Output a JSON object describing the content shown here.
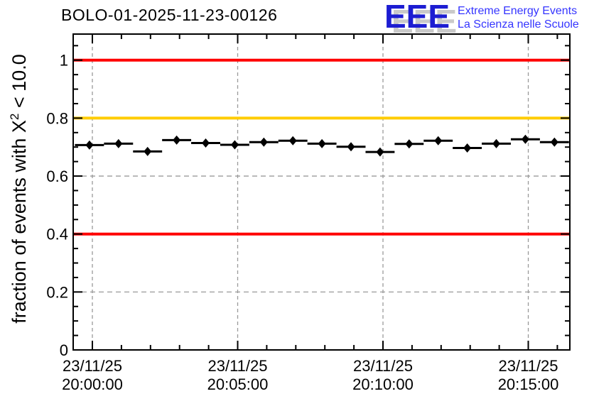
{
  "page": {
    "title": "BOLO-01-2025-11-23-00126"
  },
  "logo": {
    "acronym": "EEE",
    "line1": "Extreme Energy Events",
    "line2": "La Scienza nelle Scuole",
    "blue": "#1d1dd2",
    "text_blue": "#3535ff",
    "shadow_gray": "#c9c9c9"
  },
  "chart_data": {
    "type": "scatter",
    "title": "BOLO-01-2025-11-23-00126",
    "ylabel": "fraction of events with X^2 < 10.0",
    "ylabel_prefix": "fraction of events with X",
    "ylabel_sup": "2",
    "ylabel_suffix": " < 10.0",
    "xlabel": "",
    "ylim": [
      0,
      1.09
    ],
    "xlim_minutes_from_2000": [
      -0.66,
      16.43
    ],
    "grid": true,
    "grid_color": "#9a9a9a",
    "frame_color": "#000000",
    "y_ticks": [
      {
        "value": 0.0,
        "label": "0"
      },
      {
        "value": 0.2,
        "label": "0.2"
      },
      {
        "value": 0.4,
        "label": "0.4"
      },
      {
        "value": 0.6,
        "label": "0.6"
      },
      {
        "value": 0.8,
        "label": "0.8"
      },
      {
        "value": 1.0,
        "label": "1"
      }
    ],
    "y_minor_step": 0.05,
    "x_ticks": [
      {
        "minute": 0,
        "date": "23/11/25",
        "time": "20:00:00"
      },
      {
        "minute": 5,
        "date": "23/11/25",
        "time": "20:05:00"
      },
      {
        "minute": 10,
        "date": "23/11/25",
        "time": "20:10:00"
      },
      {
        "minute": 15,
        "date": "23/11/25",
        "time": "20:15:00"
      }
    ],
    "x_minor_step_minutes": 1,
    "reference_lines": [
      {
        "value": 1.0,
        "color": "#ff0000"
      },
      {
        "value": 0.8,
        "color": "#ffcc00"
      },
      {
        "value": 0.4,
        "color": "#ff0000"
      }
    ],
    "series": [
      {
        "name": "fraction of events with chi2 < 10 per minute",
        "marker": "diamond",
        "color": "#000000",
        "bin_halfwidth_seconds": 30,
        "points": [
          {
            "time": "19:59:54",
            "value": 0.707
          },
          {
            "time": "20:00:54",
            "value": 0.712
          },
          {
            "time": "20:01:54",
            "value": 0.685
          },
          {
            "time": "20:02:54",
            "value": 0.724
          },
          {
            "time": "20:03:54",
            "value": 0.714
          },
          {
            "time": "20:04:54",
            "value": 0.708
          },
          {
            "time": "20:05:54",
            "value": 0.717
          },
          {
            "time": "20:06:54",
            "value": 0.722
          },
          {
            "time": "20:07:54",
            "value": 0.712
          },
          {
            "time": "20:08:54",
            "value": 0.701
          },
          {
            "time": "20:09:54",
            "value": 0.683
          },
          {
            "time": "20:10:54",
            "value": 0.711
          },
          {
            "time": "20:11:54",
            "value": 0.722
          },
          {
            "time": "20:12:54",
            "value": 0.697
          },
          {
            "time": "20:13:54",
            "value": 0.712
          },
          {
            "time": "20:14:54",
            "value": 0.727
          },
          {
            "time": "20:15:54",
            "value": 0.717
          }
        ]
      }
    ]
  }
}
